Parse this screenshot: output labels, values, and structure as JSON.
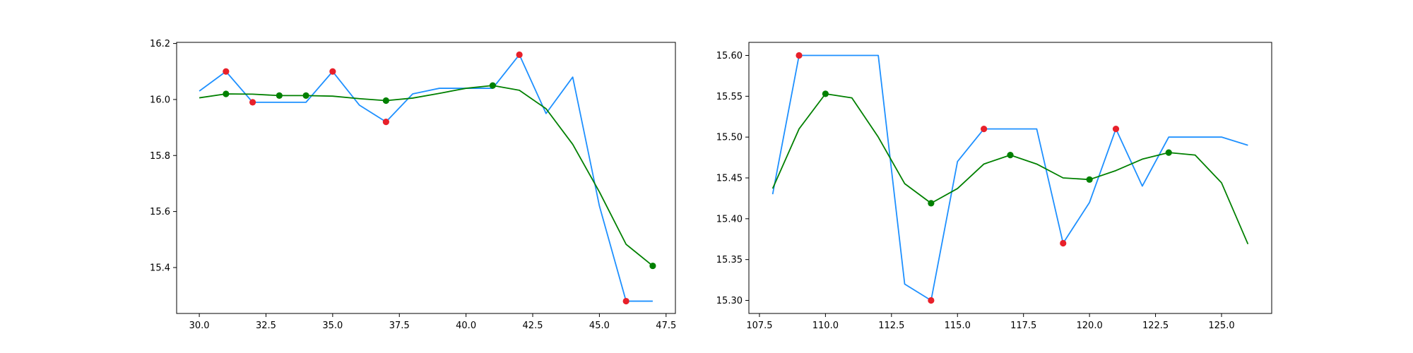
{
  "chart_data": [
    {
      "type": "line",
      "xlim": [
        29.15,
        47.85
      ],
      "ylim": [
        15.236,
        16.204
      ],
      "xticks": [
        30.0,
        32.5,
        35.0,
        37.5,
        40.0,
        42.5,
        45.0,
        47.5
      ],
      "xtick_labels": [
        "30.0",
        "32.5",
        "35.0",
        "37.5",
        "40.0",
        "42.5",
        "45.0",
        "47.5"
      ],
      "yticks": [
        15.4,
        15.6,
        15.8,
        16.0,
        16.2
      ],
      "ytick_labels": [
        "15.4",
        "15.6",
        "15.8",
        "16.0",
        "16.2"
      ],
      "grid": false,
      "series": [
        {
          "kind": "line",
          "color": "#1e90ff",
          "x": [
            30,
            31,
            32,
            33,
            34,
            35,
            36,
            37,
            38,
            39,
            40,
            41,
            42,
            43,
            44,
            45,
            46,
            47
          ],
          "y": [
            16.03,
            16.1,
            15.99,
            15.99,
            15.99,
            16.1,
            15.98,
            15.92,
            16.02,
            16.04,
            16.04,
            16.04,
            16.16,
            15.95,
            16.08,
            15.62,
            15.28,
            15.28
          ]
        },
        {
          "kind": "line",
          "color": "#008000",
          "x": [
            30,
            31,
            32,
            33,
            34,
            35,
            36,
            37,
            38,
            39,
            40,
            41,
            42,
            43,
            44,
            45,
            46,
            47
          ],
          "y": [
            16.006,
            16.02,
            16.019,
            16.014,
            16.014,
            16.012,
            16.003,
            15.996,
            16.005,
            16.022,
            16.04,
            16.05,
            16.033,
            15.967,
            15.84,
            15.67,
            15.483,
            15.406
          ]
        },
        {
          "kind": "scatter",
          "color": "#e8202a",
          "x": [
            31,
            32,
            35,
            37,
            42,
            46
          ],
          "y": [
            16.1,
            15.99,
            16.1,
            15.92,
            16.16,
            15.28
          ]
        },
        {
          "kind": "scatter",
          "color": "#008000",
          "x": [
            31,
            33,
            34,
            37,
            41,
            47
          ],
          "y": [
            16.02,
            16.014,
            16.014,
            15.996,
            16.05,
            15.406
          ]
        }
      ]
    },
    {
      "type": "line",
      "xlim": [
        107.1,
        126.9
      ],
      "ylim": [
        15.284,
        15.616
      ],
      "xticks": [
        107.5,
        110.0,
        112.5,
        115.0,
        117.5,
        120.0,
        122.5,
        125.0
      ],
      "xtick_labels": [
        "107.5",
        "110.0",
        "112.5",
        "115.0",
        "117.5",
        "120.0",
        "122.5",
        "125.0"
      ],
      "yticks": [
        15.3,
        15.35,
        15.4,
        15.45,
        15.5,
        15.55,
        15.6
      ],
      "ytick_labels": [
        "15.30",
        "15.35",
        "15.40",
        "15.45",
        "15.50",
        "15.55",
        "15.60"
      ],
      "grid": false,
      "series": [
        {
          "kind": "line",
          "color": "#1e90ff",
          "x": [
            108,
            109,
            110,
            111,
            112,
            113,
            114,
            115,
            116,
            117,
            118,
            119,
            120,
            121,
            122,
            123,
            124,
            125,
            126
          ],
          "y": [
            15.43,
            15.6,
            15.6,
            15.6,
            15.6,
            15.32,
            15.3,
            15.47,
            15.51,
            15.51,
            15.51,
            15.37,
            15.42,
            15.51,
            15.44,
            15.5,
            15.5,
            15.5,
            15.49
          ]
        },
        {
          "kind": "line",
          "color": "#008000",
          "x": [
            108,
            109,
            110,
            111,
            112,
            113,
            114,
            115,
            116,
            117,
            118,
            119,
            120,
            121,
            122,
            123,
            124,
            125,
            126
          ],
          "y": [
            15.437,
            15.51,
            15.553,
            15.548,
            15.5,
            15.443,
            15.419,
            15.437,
            15.467,
            15.478,
            15.467,
            15.45,
            15.448,
            15.459,
            15.473,
            15.481,
            15.478,
            15.444,
            15.369
          ]
        },
        {
          "kind": "scatter",
          "color": "#e8202a",
          "x": [
            109,
            114,
            116,
            119,
            121
          ],
          "y": [
            15.6,
            15.3,
            15.51,
            15.37,
            15.51
          ]
        },
        {
          "kind": "scatter",
          "color": "#008000",
          "x": [
            110,
            114,
            117,
            120,
            123
          ],
          "y": [
            15.553,
            15.419,
            15.478,
            15.448,
            15.481
          ]
        }
      ]
    }
  ]
}
